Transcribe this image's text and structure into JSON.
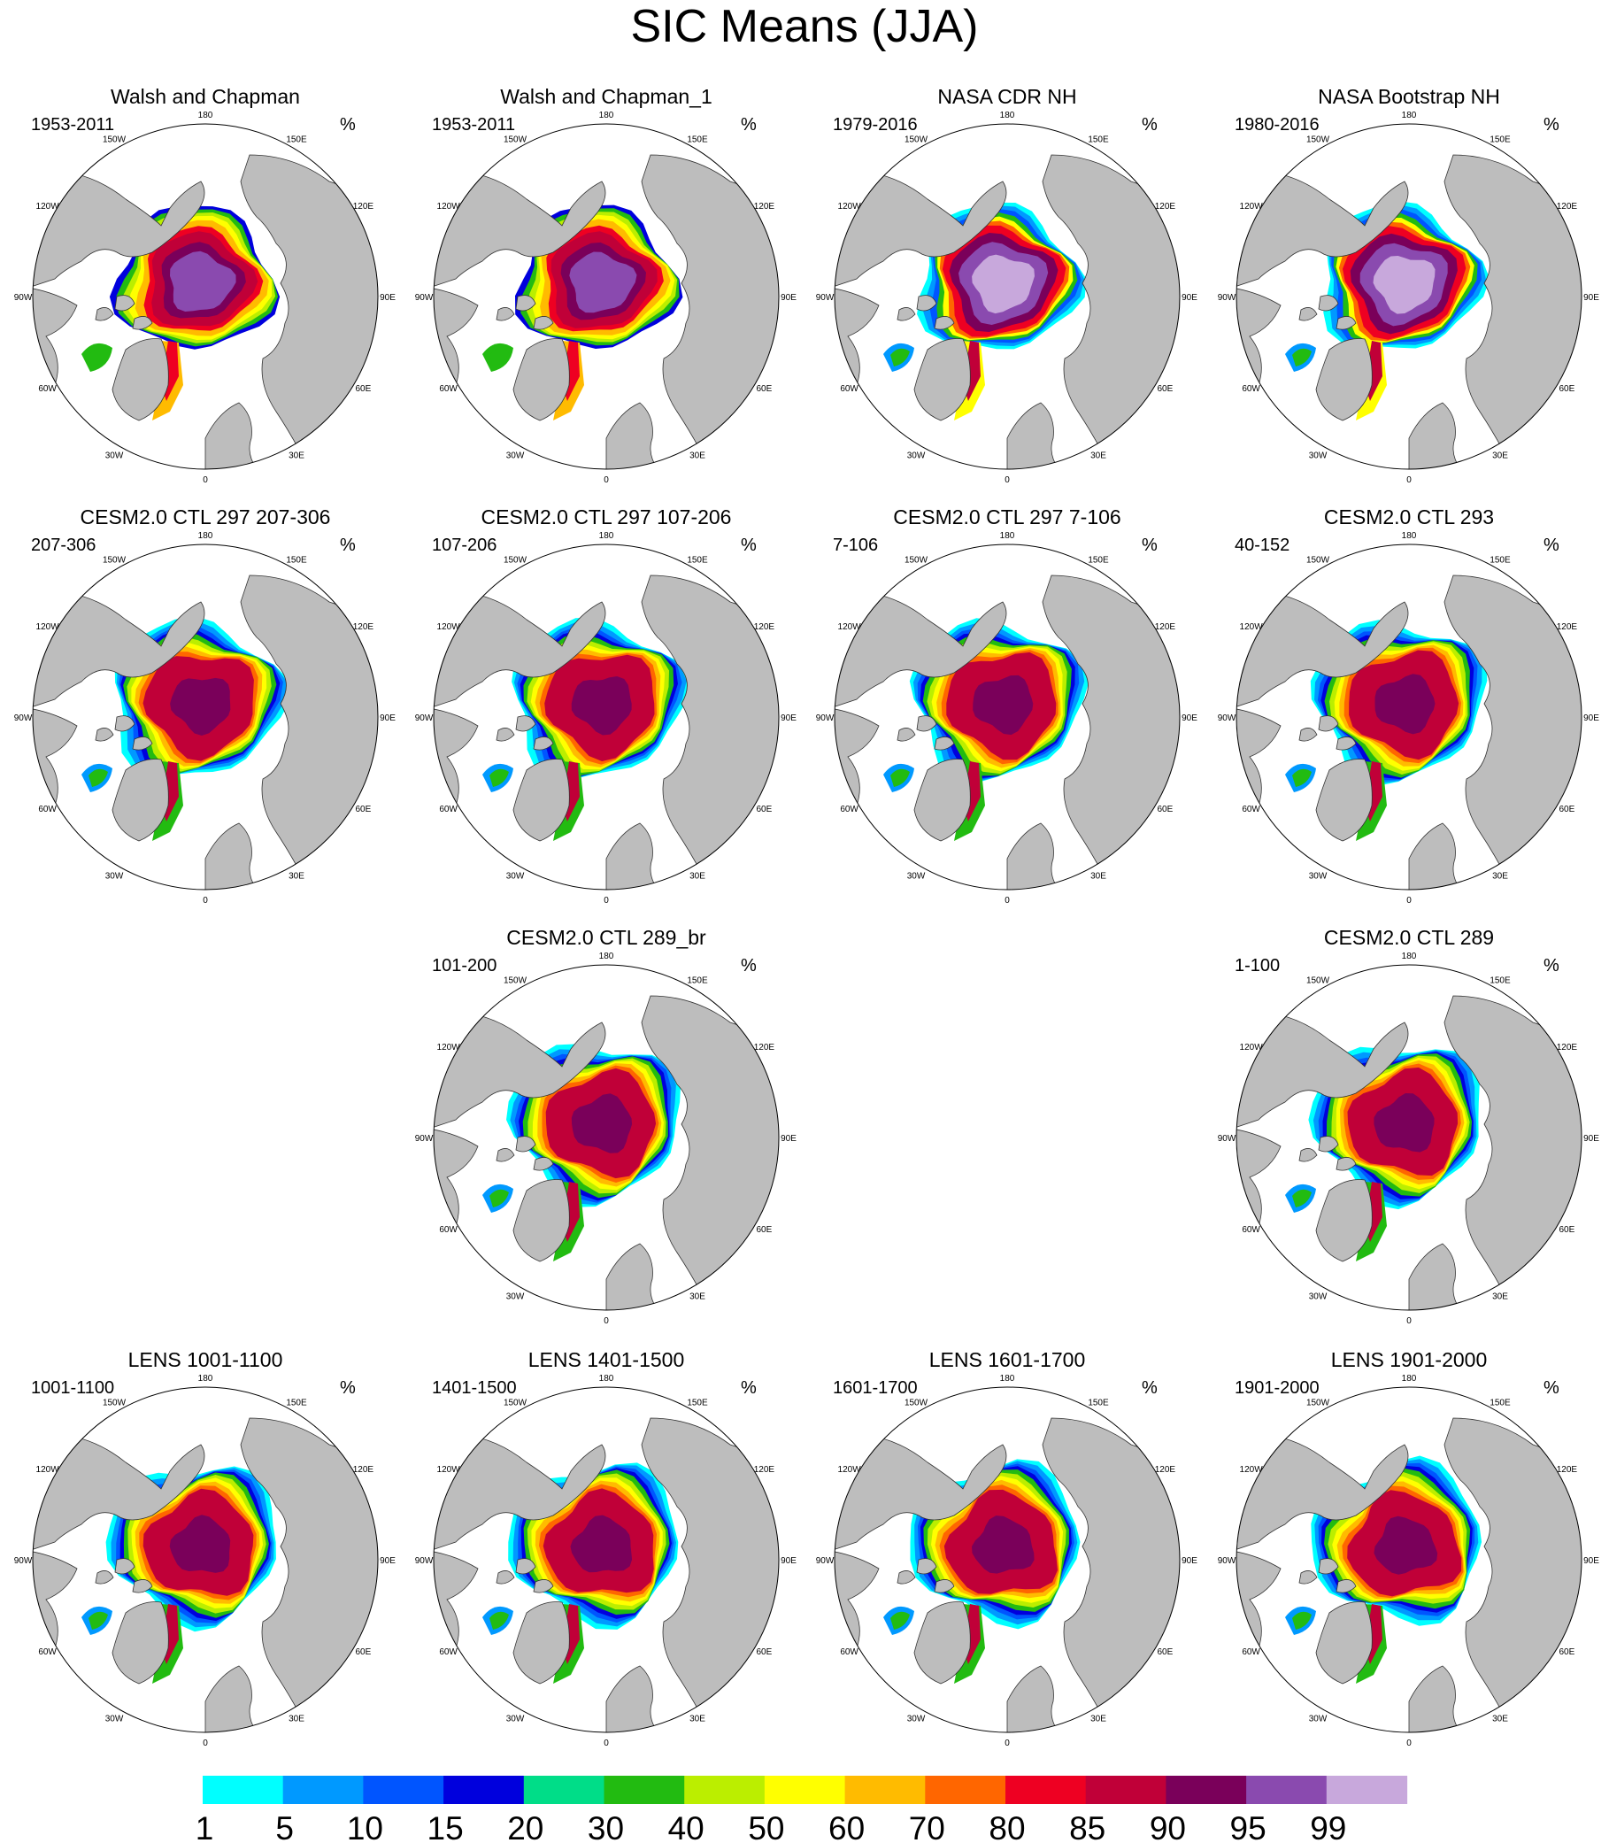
{
  "title": "SIC Means (JJA)",
  "chart_data": {
    "type": "heatmap",
    "title": "SIC Means (JJA)",
    "projection": "north polar stereographic",
    "units": "%",
    "longitude_labels": [
      "180",
      "150E",
      "120E",
      "90E",
      "60E",
      "30E",
      "0",
      "30W",
      "60W",
      "90W",
      "120W",
      "150W"
    ],
    "colorbar": {
      "labels": [
        "1",
        "5",
        "10",
        "15",
        "20",
        "30",
        "40",
        "50",
        "60",
        "70",
        "80",
        "85",
        "90",
        "95",
        "99"
      ],
      "colors": [
        "#00ffff",
        "#0099ff",
        "#0055ff",
        "#0000dd",
        "#00dd88",
        "#22bb11",
        "#bbee00",
        "#ffff00",
        "#ffbb00",
        "#ff6600",
        "#ee0022",
        "#c00038",
        "#7a005a",
        "#8a4aaf",
        "#c8a8dc"
      ]
    },
    "panels": [
      {
        "name": "Walsh and Chapman",
        "years": "1953-2011",
        "units": "%"
      },
      {
        "name": "Walsh and Chapman_1",
        "years": "1953-2011",
        "units": "%"
      },
      {
        "name": "NASA CDR NH",
        "years": "1979-2016",
        "units": "%"
      },
      {
        "name": "NASA Bootstrap NH",
        "years": "1980-2016",
        "units": "%"
      },
      {
        "name": "CESM2.0 CTL 297 207-306",
        "years": "207-306",
        "units": "%"
      },
      {
        "name": "CESM2.0 CTL 297 107-206",
        "years": "107-206",
        "units": "%"
      },
      {
        "name": "CESM2.0 CTL 297 7-106",
        "years": "7-106",
        "units": "%"
      },
      {
        "name": "CESM2.0 CTL 293",
        "years": "40-152",
        "units": "%"
      },
      {
        "name": "CESM2.0 CTL 289_br",
        "years": "101-200",
        "units": "%"
      },
      {
        "name": "CESM2.0 CTL 289",
        "years": "1-100",
        "units": "%"
      },
      {
        "name": "LENS 1001-1100",
        "years": "1001-1100",
        "units": "%"
      },
      {
        "name": "LENS 1401-1500",
        "years": "1401-1500",
        "units": "%"
      },
      {
        "name": "LENS 1601-1700",
        "years": "1601-1700",
        "units": "%"
      },
      {
        "name": "LENS 1901-2000",
        "years": "1901-2000",
        "units": "%"
      }
    ]
  }
}
